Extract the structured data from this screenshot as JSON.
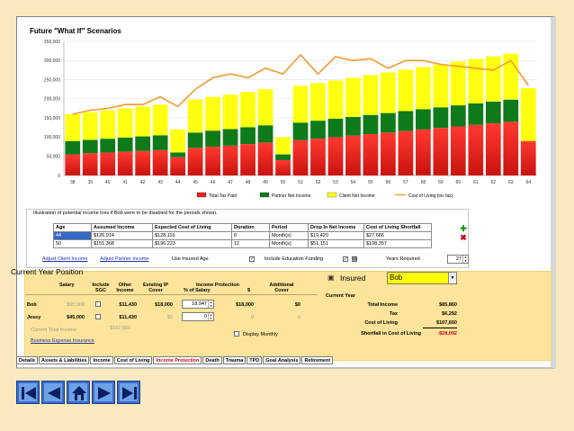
{
  "chart": {
    "title": "Future \"What If\" Scenarios",
    "y_ticks": [
      "350,000",
      "300,000",
      "250,000",
      "200,000",
      "150,000",
      "100,000",
      "50,000",
      "0"
    ],
    "legend": [
      "Total Tax Paid",
      "Partner Net Income",
      "Client Net Income",
      "Cost of Living (inc tax)"
    ],
    "colors": {
      "tax": "#e8201c",
      "partner": "#0f7a1a",
      "client": "#ffff10",
      "line": "#f29a2e"
    }
  },
  "chart_data": {
    "type": "bar",
    "title": "Future \"What If\" Scenarios",
    "ylim": [
      0,
      350000
    ],
    "categories": [
      38,
      39,
      40,
      41,
      42,
      43,
      44,
      45,
      46,
      47,
      48,
      49,
      50,
      51,
      52,
      53,
      54,
      55,
      56,
      57,
      58,
      59,
      60,
      61,
      62,
      63,
      64
    ],
    "series": [
      {
        "name": "Total Tax Paid",
        "stack": true,
        "values": [
          55000,
          58000,
          60000,
          62000,
          64000,
          66000,
          48000,
          72000,
          75000,
          78000,
          82000,
          86000,
          40000,
          92000,
          96000,
          100000,
          104000,
          108000,
          112000,
          116000,
          120000,
          124000,
          128000,
          132000,
          136000,
          140000,
          90000
        ]
      },
      {
        "name": "Partner Net Income",
        "stack": true,
        "values": [
          35000,
          35000,
          36000,
          37000,
          38000,
          39000,
          12000,
          40000,
          42000,
          43000,
          44000,
          45000,
          15000,
          46000,
          47000,
          48000,
          49000,
          50000,
          51000,
          52000,
          53000,
          54000,
          55000,
          56000,
          57000,
          58000,
          0
        ]
      },
      {
        "name": "Client Net Income",
        "stack": true,
        "values": [
          70000,
          72000,
          74000,
          76000,
          78000,
          80000,
          60000,
          86000,
          88000,
          90000,
          92000,
          94000,
          45000,
          96000,
          98000,
          100000,
          102000,
          104000,
          106000,
          108000,
          110000,
          112000,
          114000,
          116000,
          118000,
          120000,
          138000
        ]
      },
      {
        "name": "Cost of Living (inc tax)",
        "type": "line",
        "values": [
          160000,
          170000,
          175000,
          185000,
          185000,
          205000,
          180000,
          225000,
          255000,
          265000,
          255000,
          280000,
          265000,
          315000,
          265000,
          310000,
          300000,
          305000,
          280000,
          300000,
          300000,
          290000,
          285000,
          280000,
          275000,
          300000,
          235000
        ]
      }
    ]
  },
  "illustration": {
    "title": "Illustration of potential income loss if Bob were to be disabled for the periods shown.",
    "headers": [
      "Age",
      "Assumed Income",
      "Expected Cost of Living",
      "Duration",
      "Period",
      "Drop In Net Income",
      "Cost of Living Shortfall"
    ],
    "rows": [
      [
        "44",
        "$126,914",
        "$128,116",
        "6",
        "Month(s)",
        "$19,420",
        "$27,686"
      ],
      [
        "50",
        "$151,368",
        "$196,223",
        "12",
        "Month(s)",
        "$51,151",
        "$108,357"
      ]
    ],
    "adjust_client": "Adjust Client Income",
    "adjust_partner": "Adjust Partner Income",
    "use_insured_age": "Use Insured Age",
    "include_education": "Include Education Funding",
    "years_required_label": "Years Required",
    "years_required": "27"
  },
  "current_year": {
    "title": "Current Year Position",
    "headers": {
      "salary": "Salary",
      "include_sgc": "Include SGC",
      "other_income": "Other Income",
      "existing_ip": "Existing IP Cover",
      "income_protection": "Income Protection",
      "pct_salary": "% of Salary",
      "dollar": "$",
      "additional": "Additional Cover"
    },
    "bob": {
      "name": "Bob",
      "salary": "$95,000",
      "other": "$11,430",
      "existing": "$18,000",
      "pct": "18.947",
      "ip": "$18,000",
      "additional": "$0"
    },
    "jessy": {
      "name": "Jessy",
      "salary": "$45,000",
      "other": "$11,430",
      "existing": "$0",
      "pct": "0",
      "ip": "0",
      "additional": "0"
    },
    "current_total_label": "Current Total Income",
    "current_total": "$162,860",
    "business_expense": "Business Expense Insurance",
    "display_monthly": "Display Monthly",
    "insured_label": "Insured",
    "insured_value": "Bob",
    "summary_title": "Current Year",
    "total_income_label": "Total Income",
    "total_income": "$85,860",
    "tax_label": "Tax",
    "tax": "$6,292",
    "col_label": "Cost of Living",
    "col": "$107,660",
    "shortfall_label": "Shortfall in Cost of Living",
    "shortfall": "-$28,092"
  },
  "tabs": [
    "Details",
    "Assets & Liabilities",
    "Income",
    "Cost of Living",
    "Income Protection",
    "Death",
    "Trauma",
    "TPD",
    "Goal Analysis",
    "Retirement"
  ],
  "active_tab": "Income Protection"
}
